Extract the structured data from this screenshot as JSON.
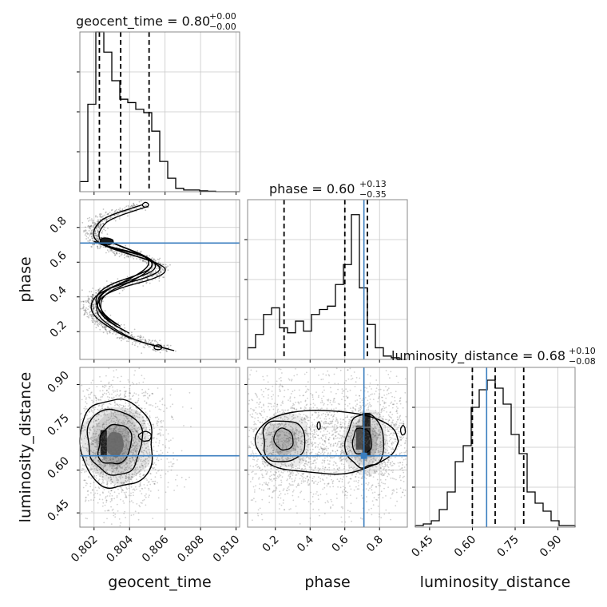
{
  "chart_data": {
    "type": "corner",
    "truth_color": "#3a7ebf",
    "parameters": [
      {
        "name": "geocent_time",
        "label": "geocent_time",
        "range": [
          0.8012,
          0.8102
        ],
        "ticks": [
          0.802,
          0.804,
          0.806,
          0.808,
          0.81
        ],
        "tick_labels": [
          "0.802",
          "0.804",
          "0.806",
          "0.808",
          "0.810"
        ],
        "title_value": "0.80",
        "title_plus": "+0.00",
        "title_minus": "−0.00",
        "quantiles": [
          0.8023,
          0.8035,
          0.8051
        ],
        "truth": null
      },
      {
        "name": "phase",
        "label": "phase",
        "range": [
          0.04,
          0.96
        ],
        "ticks": [
          0.2,
          0.4,
          0.6,
          0.8
        ],
        "tick_labels": [
          "0.2",
          "0.4",
          "0.6",
          "0.8"
        ],
        "title_value": "0.60",
        "title_plus": "+0.13",
        "title_minus": "−0.35",
        "quantiles": [
          0.25,
          0.6,
          0.73
        ],
        "truth": 0.71
      },
      {
        "name": "luminosity_distance",
        "label": "luminosity_distance",
        "range": [
          0.4,
          0.96
        ],
        "ticks": [
          0.45,
          0.6,
          0.75,
          0.9
        ],
        "tick_labels": [
          "0.45",
          "0.60",
          "0.75",
          "0.90"
        ],
        "title_value": "0.68",
        "title_plus": "+0.10",
        "title_minus": "−0.08",
        "quantiles": [
          0.6,
          0.68,
          0.78
        ],
        "truth": 0.65
      }
    ],
    "histograms": {
      "geocent_time": {
        "edges": [
          0.8012,
          0.80165,
          0.8021,
          0.80255,
          0.803,
          0.80345,
          0.8039,
          0.80435,
          0.8048,
          0.80525,
          0.8057,
          0.80615,
          0.8066,
          0.80705,
          0.8075,
          0.80795,
          0.8084,
          0.80885,
          0.8093,
          0.80975,
          0.8102
        ],
        "counts": [
          0.06,
          0.52,
          0.95,
          0.83,
          0.66,
          0.55,
          0.53,
          0.49,
          0.47,
          0.36,
          0.18,
          0.08,
          0.02,
          0.01,
          0.01,
          0.005,
          0.003,
          0,
          0,
          0
        ]
      },
      "phase": {
        "edges": [
          0.04,
          0.086,
          0.132,
          0.178,
          0.224,
          0.27,
          0.316,
          0.362,
          0.408,
          0.454,
          0.5,
          0.546,
          0.592,
          0.638,
          0.684,
          0.73,
          0.776,
          0.822,
          0.868,
          0.914,
          0.96
        ],
        "counts": [
          0.07,
          0.15,
          0.27,
          0.31,
          0.19,
          0.16,
          0.23,
          0.17,
          0.27,
          0.3,
          0.32,
          0.45,
          0.57,
          0.87,
          0.43,
          0.21,
          0.07,
          0.02,
          0.01,
          0
        ],
        "max": 0.96
      },
      "luminosity_distance": {
        "edges": [
          0.4,
          0.428,
          0.456,
          0.484,
          0.512,
          0.54,
          0.568,
          0.596,
          0.624,
          0.652,
          0.68,
          0.708,
          0.736,
          0.764,
          0.792,
          0.82,
          0.848,
          0.876,
          0.904,
          0.932,
          0.96
        ],
        "counts": [
          0.01,
          0.02,
          0.04,
          0.11,
          0.22,
          0.41,
          0.51,
          0.75,
          0.86,
          0.92,
          0.87,
          0.77,
          0.58,
          0.46,
          0.22,
          0.15,
          0.1,
          0.04,
          0.01,
          0.01
        ],
        "max": 1.0
      }
    },
    "scatter": {
      "phase_vs_geocent_time": {
        "contour_paths": [
          [
            [
              0.8047,
              0.93
            ],
            [
              0.8026,
              0.86
            ],
            [
              0.8021,
              0.81
            ],
            [
              0.8019,
              0.76
            ],
            [
              0.8022,
              0.71
            ],
            [
              0.8035,
              0.66
            ],
            [
              0.8052,
              0.61
            ],
            [
              0.8059,
              0.56
            ],
            [
              0.805,
              0.51
            ],
            [
              0.8034,
              0.47
            ],
            [
              0.8022,
              0.42
            ],
            [
              0.8018,
              0.36
            ],
            [
              0.8019,
              0.3
            ],
            [
              0.8026,
              0.24
            ],
            [
              0.8036,
              0.18
            ],
            [
              0.8046,
              0.14
            ],
            [
              0.8062,
              0.1
            ]
          ],
          [
            [
              0.8024,
              0.74
            ],
            [
              0.8033,
              0.7
            ],
            [
              0.8051,
              0.63
            ],
            [
              0.8054,
              0.57
            ],
            [
              0.8043,
              0.52
            ],
            [
              0.8028,
              0.47
            ],
            [
              0.802,
              0.4
            ],
            [
              0.8023,
              0.31
            ],
            [
              0.8033,
              0.24
            ]
          ],
          [
            [
              0.802,
              0.72
            ],
            [
              0.8028,
              0.69
            ],
            [
              0.8049,
              0.64
            ],
            [
              0.8052,
              0.58
            ],
            [
              0.804,
              0.5
            ],
            [
              0.8024,
              0.43
            ],
            [
              0.8021,
              0.35
            ],
            [
              0.8026,
              0.27
            ],
            [
              0.8038,
              0.2
            ]
          ]
        ]
      },
      "luminosity_distance_vs_geocent_time": {
        "center": [
          0.8029,
          0.69
        ]
      },
      "luminosity_distance_vs_phase": {
        "centers": [
          [
            0.25,
            0.7
          ],
          [
            0.72,
            0.7
          ]
        ]
      }
    }
  }
}
